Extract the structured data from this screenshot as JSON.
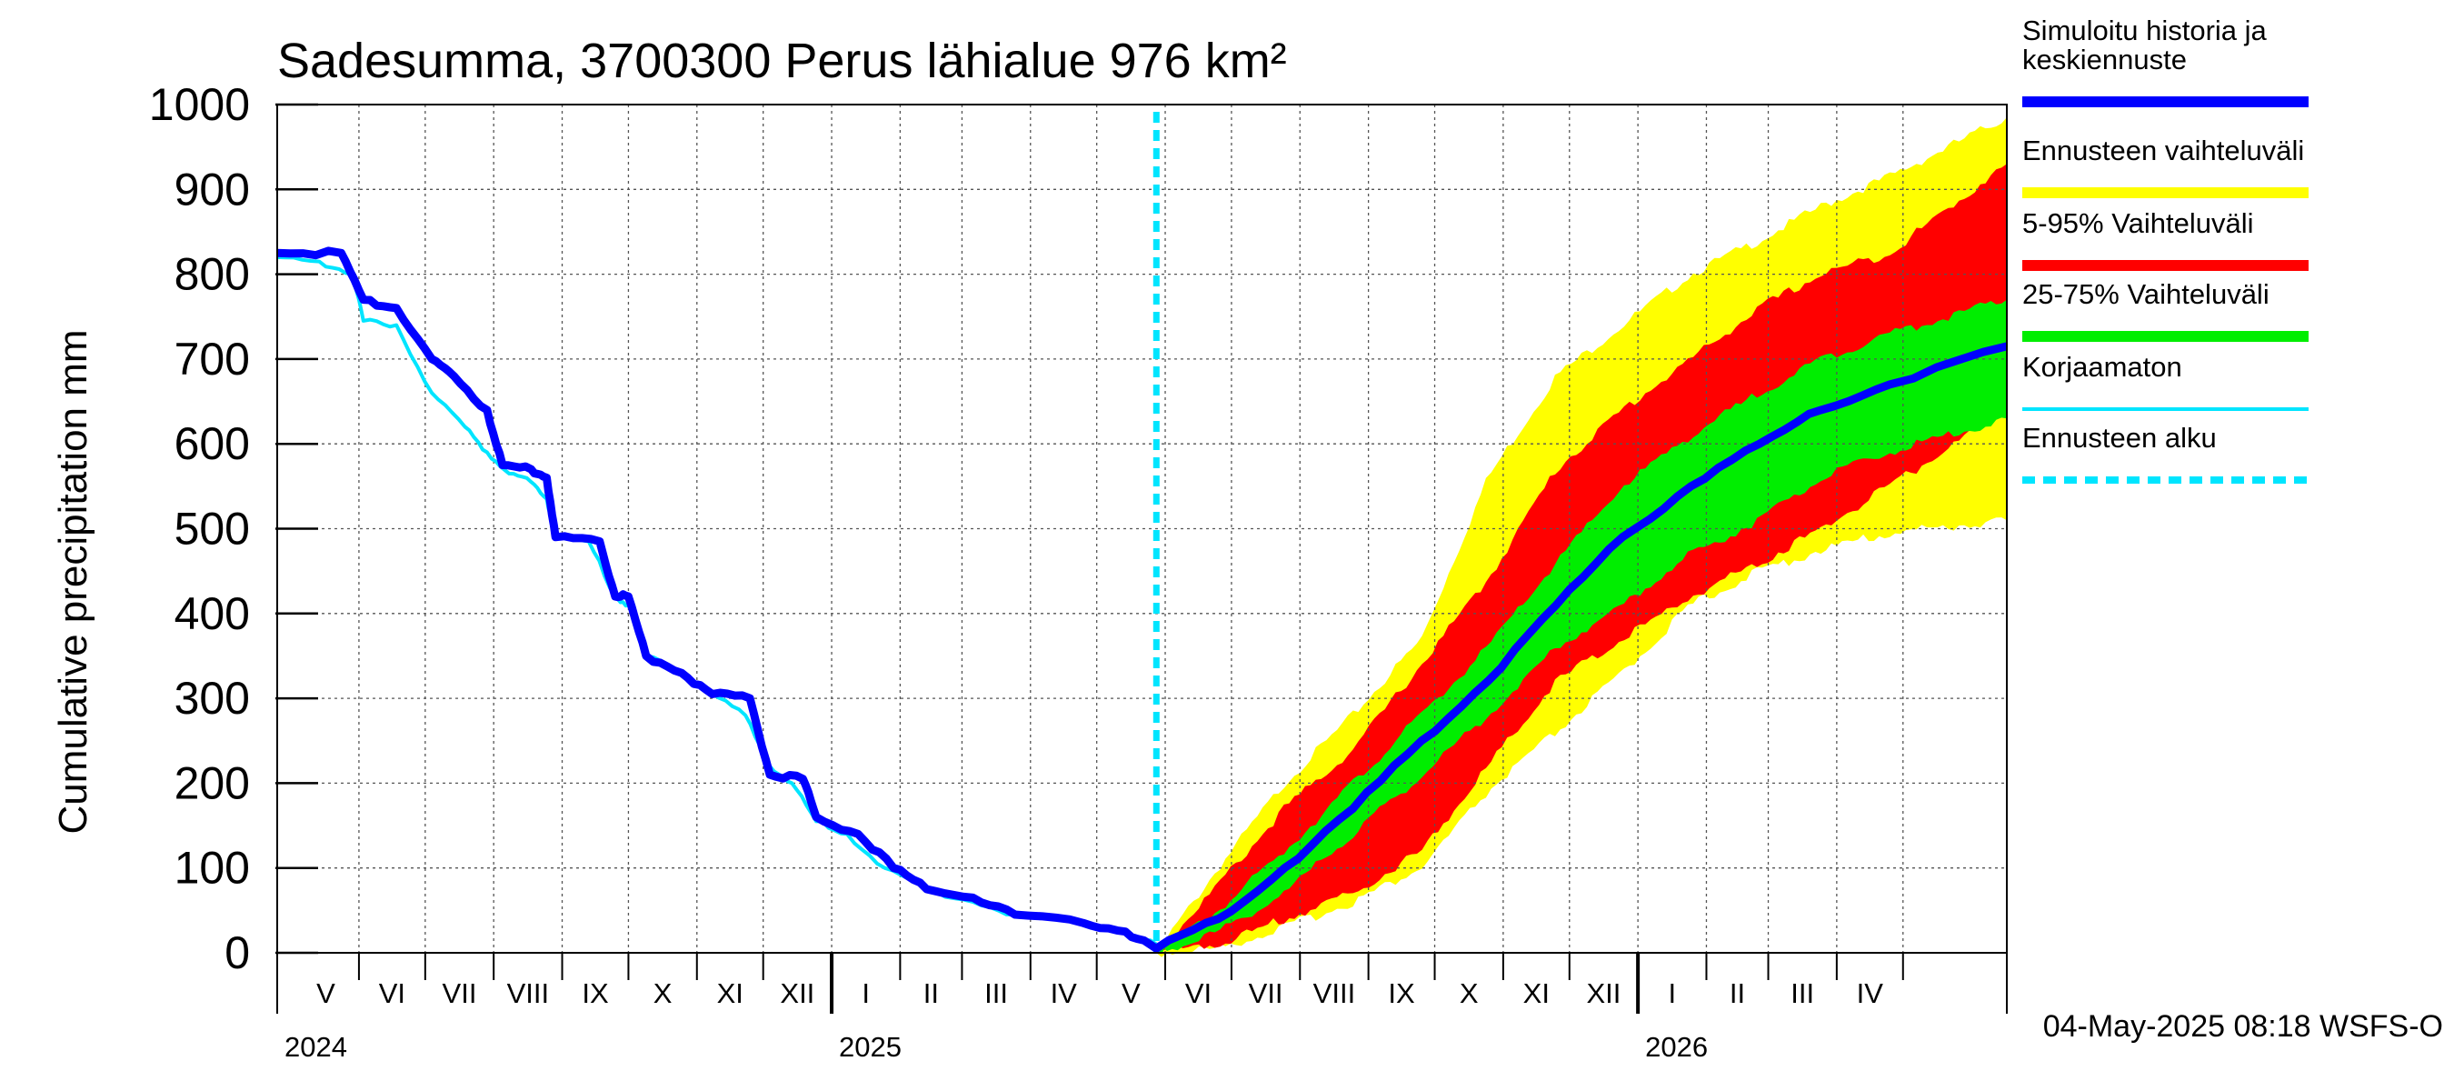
{
  "chart_data": {
    "type": "area",
    "title": "Sadesumma, 3700300 Perus lähialue 976 km²",
    "ylabel": "Cumulative precipitation   mm",
    "ylim": [
      0,
      1000
    ],
    "yticks": [
      "0",
      "100",
      "200",
      "300",
      "400",
      "500",
      "600",
      "700",
      "800",
      "900",
      "1000"
    ],
    "grid": true,
    "legend_position": "right",
    "x_start": "2024-04-01",
    "x_end": "2026-05-24",
    "forecast_start": "2025-05-04",
    "months": [
      {
        "label": "V",
        "start": "2024-04-08",
        "end": "2024-05-08"
      },
      {
        "label": "VI",
        "start": "2024-05-08",
        "end": "2024-06-07"
      },
      {
        "label": "VII",
        "start": "2024-06-07",
        "end": "2024-07-08"
      },
      {
        "label": "VIII",
        "start": "2024-07-08",
        "end": "2024-08-08"
      },
      {
        "label": "IX",
        "start": "2024-08-08",
        "end": "2024-09-07"
      },
      {
        "label": "X",
        "start": "2024-09-07",
        "end": "2024-10-08"
      },
      {
        "label": "XI",
        "start": "2024-10-08",
        "end": "2024-11-07"
      },
      {
        "label": "XII",
        "start": "2024-11-07",
        "end": "2024-12-08"
      },
      {
        "label": "I",
        "start": "2024-12-08",
        "end": "2025-01-08"
      },
      {
        "label": "II",
        "start": "2025-01-08",
        "end": "2025-02-05"
      },
      {
        "label": "III",
        "start": "2025-02-05",
        "end": "2025-03-08"
      },
      {
        "label": "IV",
        "start": "2025-03-08",
        "end": "2025-04-07"
      },
      {
        "label": "V",
        "start": "2025-04-07",
        "end": "2025-05-08"
      },
      {
        "label": "VI",
        "start": "2025-05-08",
        "end": "2025-06-07"
      },
      {
        "label": "VII",
        "start": "2025-06-07",
        "end": "2025-07-08"
      },
      {
        "label": "VIII",
        "start": "2025-07-08",
        "end": "2025-08-08"
      },
      {
        "label": "IX",
        "start": "2025-08-08",
        "end": "2025-09-07"
      },
      {
        "label": "X",
        "start": "2025-09-07",
        "end": "2025-10-08"
      },
      {
        "label": "XI",
        "start": "2025-10-08",
        "end": "2025-11-07"
      },
      {
        "label": "XII",
        "start": "2025-11-07",
        "end": "2025-12-08"
      },
      {
        "label": "I",
        "start": "2025-12-08",
        "end": "2026-01-08"
      },
      {
        "label": "II",
        "start": "2026-01-08",
        "end": "2026-02-05"
      },
      {
        "label": "III",
        "start": "2026-02-05",
        "end": "2026-03-08"
      },
      {
        "label": "IV",
        "start": "2026-03-08",
        "end": "2026-04-07"
      }
    ],
    "years": [
      {
        "label": "2024",
        "date": "2024-04-01"
      },
      {
        "label": "2025",
        "date": "2024-12-08"
      },
      {
        "label": "2026",
        "date": "2025-12-08"
      }
    ],
    "series": [
      {
        "name": "Ennusteen vaihteluväli",
        "kind": "band",
        "color": "#ffff00",
        "x": [
          "2025-05-04",
          "2025-06-01",
          "2025-07-01",
          "2025-08-01",
          "2025-09-01",
          "2025-10-01",
          "2025-11-01",
          "2025-12-01",
          "2026-01-01",
          "2026-02-01",
          "2026-03-01",
          "2026-04-01",
          "2026-05-24"
        ],
        "upper": [
          0,
          100,
          200,
          280,
          370,
          560,
          680,
          740,
          800,
          840,
          880,
          915,
          985
        ],
        "lower": [
          0,
          5,
          30,
          60,
          100,
          190,
          260,
          330,
          410,
          450,
          475,
          495,
          510
        ]
      },
      {
        "name": "5-95% Vaihteluväli",
        "kind": "band",
        "color": "#ff0000",
        "x": [
          "2025-05-04",
          "2025-06-01",
          "2025-07-01",
          "2025-08-01",
          "2025-09-01",
          "2025-10-01",
          "2025-11-01",
          "2025-12-01",
          "2026-01-01",
          "2026-02-01",
          "2026-03-01",
          "2026-04-01",
          "2026-05-24"
        ],
        "upper": [
          0,
          80,
          170,
          240,
          340,
          440,
          570,
          640,
          700,
          760,
          800,
          825,
          930
        ],
        "lower": [
          0,
          10,
          40,
          70,
          120,
          220,
          320,
          370,
          420,
          460,
          500,
          550,
          640
        ]
      },
      {
        "name": "25-75% Vaihteluväli",
        "kind": "band",
        "color": "#00ee00",
        "x": [
          "2025-05-04",
          "2025-06-01",
          "2025-07-01",
          "2025-08-01",
          "2025-09-01",
          "2025-10-01",
          "2025-11-01",
          "2025-12-01",
          "2026-01-01",
          "2026-02-01",
          "2026-03-01",
          "2026-04-01",
          "2026-05-24"
        ],
        "upper": [
          0,
          50,
          120,
          200,
          280,
          360,
          460,
          550,
          610,
          660,
          700,
          730,
          770
        ],
        "lower": [
          0,
          25,
          70,
          140,
          210,
          280,
          360,
          410,
          470,
          510,
          560,
          590,
          630
        ]
      },
      {
        "name": "Korjaamaton",
        "kind": "line",
        "color": "#00e5ff",
        "x": [
          "2024-04-01",
          "2024-04-20",
          "2024-05-05",
          "2024-05-10",
          "2024-05-25",
          "2024-06-10",
          "2024-06-25",
          "2024-07-05",
          "2024-07-15",
          "2024-07-25",
          "2024-08-01",
          "2024-08-05",
          "2024-08-20",
          "2024-09-01",
          "2024-09-07",
          "2024-09-15",
          "2024-10-01",
          "2024-10-15",
          "2024-10-30",
          "2024-11-10",
          "2024-11-20",
          "2024-12-01",
          "2024-12-15",
          "2025-01-01",
          "2025-01-20",
          "2025-02-10",
          "2025-03-01",
          "2025-04-01",
          "2025-04-20",
          "2025-05-04"
        ],
        "y": [
          820,
          815,
          800,
          745,
          740,
          660,
          620,
          590,
          565,
          555,
          535,
          490,
          485,
          420,
          410,
          350,
          330,
          305,
          280,
          220,
          200,
          155,
          140,
          100,
          75,
          60,
          45,
          35,
          25,
          10
        ]
      },
      {
        "name": "Simuloitu historia ja keskiennuste",
        "kind": "line",
        "color": "#0000ff",
        "x": [
          "2024-04-01",
          "2024-04-30",
          "2024-05-10",
          "2024-05-25",
          "2024-06-10",
          "2024-06-20",
          "2024-07-05",
          "2024-07-12",
          "2024-07-25",
          "2024-08-01",
          "2024-08-05",
          "2024-08-25",
          "2024-09-01",
          "2024-09-07",
          "2024-09-15",
          "2024-10-01",
          "2024-10-15",
          "2024-11-01",
          "2024-11-10",
          "2024-11-25",
          "2024-12-01",
          "2024-12-20",
          "2025-01-05",
          "2025-01-20",
          "2025-02-10",
          "2025-03-01",
          "2025-04-01",
          "2025-04-20",
          "2025-05-04",
          "2025-06-01",
          "2025-07-01",
          "2025-08-01",
          "2025-09-01",
          "2025-10-01",
          "2025-11-01",
          "2025-12-01",
          "2026-01-01",
          "2026-02-01",
          "2026-03-01",
          "2026-04-01",
          "2026-05-24"
        ],
        "y": [
          825,
          825,
          770,
          760,
          700,
          680,
          640,
          575,
          570,
          560,
          490,
          485,
          420,
          420,
          350,
          330,
          305,
          300,
          210,
          205,
          160,
          140,
          100,
          75,
          65,
          45,
          35,
          25,
          5,
          40,
          100,
          170,
          250,
          320,
          410,
          490,
          550,
          600,
          640,
          670,
          715
        ]
      }
    ]
  },
  "legend": {
    "entries": [
      {
        "text": "Simuloitu historia ja\nkeskiennuste",
        "color": "#0000ff",
        "style": "solid"
      },
      {
        "text": "Ennusteen vaihteluväli",
        "color": "#ffff00",
        "style": "solid"
      },
      {
        "text": "5-95% Vaihteluväli",
        "color": "#ff0000",
        "style": "solid"
      },
      {
        "text": "25-75% Vaihteluväli",
        "color": "#00ee00",
        "style": "solid"
      },
      {
        "text": "Korjaamaton",
        "color": "#00e5ff",
        "style": "thin"
      },
      {
        "text": "Ennusteen alku",
        "color": "#00e5ff",
        "style": "dashed"
      }
    ]
  },
  "footer": {
    "timestamp": "04-May-2025 08:18 WSFS-O"
  }
}
